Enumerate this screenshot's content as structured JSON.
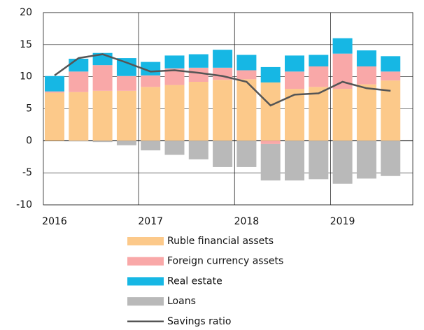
{
  "chart_data": {
    "type": "bar",
    "stacked": true,
    "categories": [
      "2016",
      null,
      null,
      null,
      "2017",
      null,
      null,
      null,
      "2018",
      null,
      null,
      null,
      "2019",
      null,
      null
    ],
    "series": [
      {
        "name": "Ruble financial assets",
        "color": "#fcc98a",
        "values": [
          7.5,
          7.6,
          7.8,
          7.8,
          8.4,
          8.7,
          9.2,
          9.5,
          9.6,
          9.1,
          8.1,
          8.4,
          8.1,
          8.8,
          9.4
        ]
      },
      {
        "name": "Foreign currency assets",
        "color": "#f9a8a8",
        "values": [
          0.2,
          3.2,
          4.0,
          2.3,
          1.8,
          2.6,
          2.2,
          1.9,
          1.4,
          -0.5,
          2.7,
          3.2,
          5.5,
          2.8,
          1.4
        ]
      },
      {
        "name": "Real estate",
        "color": "#16b7e4",
        "values": [
          2.4,
          2.0,
          1.9,
          2.8,
          2.1,
          2.0,
          2.1,
          2.8,
          2.4,
          2.4,
          2.5,
          1.8,
          2.4,
          2.5,
          2.4
        ]
      },
      {
        "name": "Loans",
        "color": "#b9b9b9",
        "values": [
          0,
          -0.1,
          -0.2,
          -0.7,
          -1.5,
          -2.2,
          -2.9,
          -4.1,
          -4.1,
          -5.7,
          -6.2,
          -6.0,
          -6.7,
          -5.9,
          -5.5
        ]
      },
      {
        "name": "Savings ratio",
        "color": "#555555",
        "type": "line",
        "values": [
          10.2,
          12.9,
          13.5,
          12.2,
          10.8,
          11.0,
          10.6,
          10.1,
          9.2,
          5.5,
          7.2,
          7.4,
          9.2,
          8.2,
          7.8
        ]
      }
    ],
    "ylim": [
      -10,
      20
    ],
    "yticks": [
      -10,
      -5,
      0,
      5,
      10,
      15,
      20
    ],
    "grid": true,
    "legend": "bottom"
  }
}
